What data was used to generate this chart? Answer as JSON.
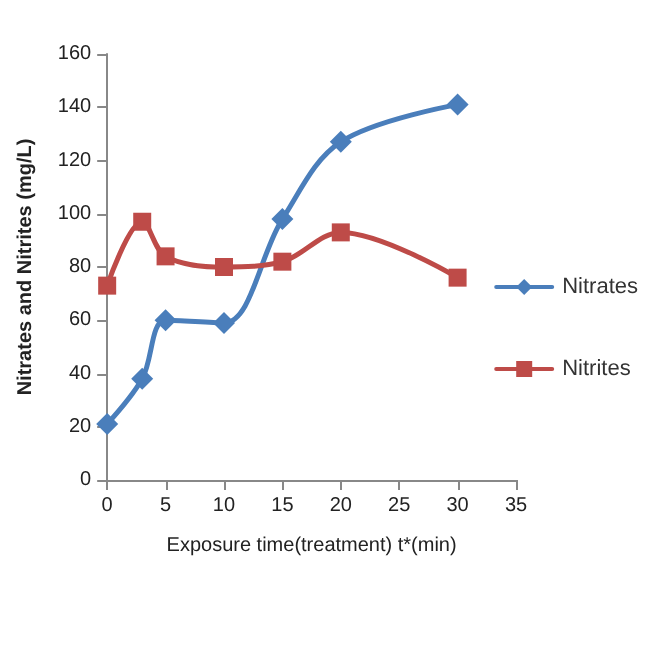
{
  "chart_data": {
    "type": "line",
    "xlabel": "Exposure time(treatment) t*(min)",
    "ylabel": "Nitrates and Nitrites (mg/L)",
    "x": [
      0,
      3,
      5,
      10,
      15,
      20,
      30
    ],
    "series": [
      {
        "name": "Nitrates",
        "color": "#4a7ebb",
        "marker": "diamond",
        "values": [
          21,
          38,
          60,
          59,
          98,
          127,
          141
        ]
      },
      {
        "name": "Nitrites",
        "color": "#be4b48",
        "marker": "square",
        "values": [
          73,
          97,
          84,
          80,
          82,
          93,
          76
        ]
      }
    ],
    "xlim": [
      0,
      35
    ],
    "xticks": [
      0,
      5,
      10,
      15,
      20,
      25,
      30,
      35
    ],
    "ylim": [
      0,
      160
    ],
    "yticks": [
      0,
      20,
      40,
      60,
      80,
      100,
      120,
      140,
      160
    ],
    "grid": false,
    "legend": "right"
  }
}
